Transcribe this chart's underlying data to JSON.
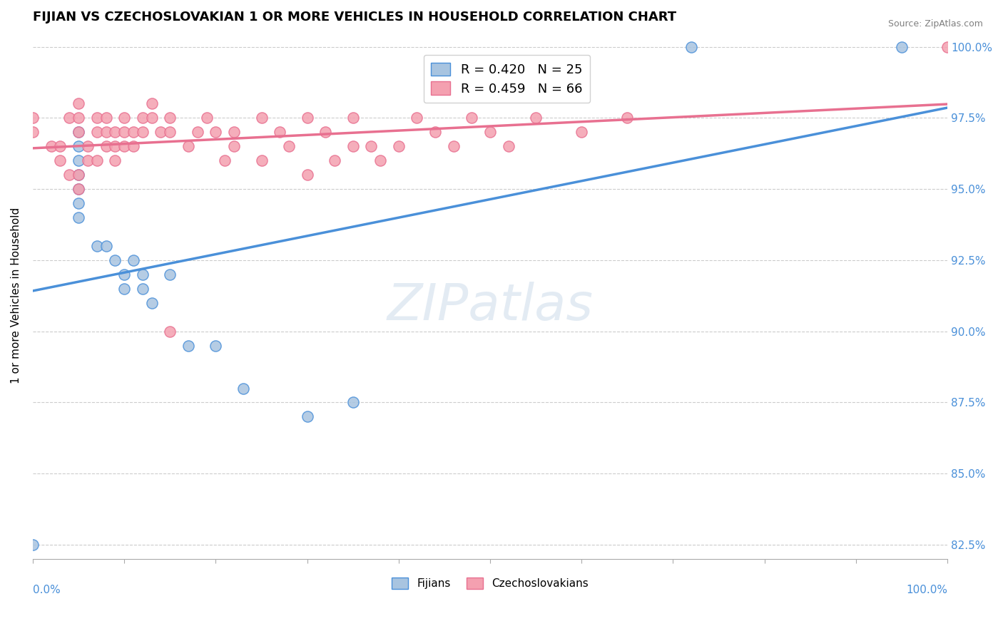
{
  "title": "FIJIAN VS CZECHOSLOVAKIAN 1 OR MORE VEHICLES IN HOUSEHOLD CORRELATION CHART",
  "source_text": "Source: ZipAtlas.com",
  "ylabel": "1 or more Vehicles in Household",
  "ytick_labels": [
    "82.5%",
    "85.0%",
    "87.5%",
    "90.0%",
    "92.5%",
    "95.0%",
    "97.5%",
    "100.0%"
  ],
  "ytick_values": [
    0.825,
    0.85,
    0.875,
    0.9,
    0.925,
    0.95,
    0.975,
    1.0
  ],
  "xrange": [
    0.0,
    1.0
  ],
  "yrange": [
    0.82,
    1.005
  ],
  "fijian_color": "#a8c4e0",
  "czechoslovakian_color": "#f4a0b0",
  "fijian_line_color": "#4a90d9",
  "czechoslovakian_line_color": "#e87090",
  "fijian_R": 0.42,
  "fijian_N": 25,
  "czechoslovakian_R": 0.459,
  "czechoslovakian_N": 66,
  "fijian_scatter": [
    [
      0.0,
      0.825
    ],
    [
      0.05,
      0.97
    ],
    [
      0.05,
      0.965
    ],
    [
      0.05,
      0.96
    ],
    [
      0.05,
      0.955
    ],
    [
      0.05,
      0.95
    ],
    [
      0.05,
      0.945
    ],
    [
      0.05,
      0.94
    ],
    [
      0.07,
      0.93
    ],
    [
      0.08,
      0.93
    ],
    [
      0.09,
      0.925
    ],
    [
      0.1,
      0.92
    ],
    [
      0.1,
      0.915
    ],
    [
      0.11,
      0.925
    ],
    [
      0.12,
      0.92
    ],
    [
      0.12,
      0.915
    ],
    [
      0.13,
      0.91
    ],
    [
      0.15,
      0.92
    ],
    [
      0.17,
      0.895
    ],
    [
      0.2,
      0.895
    ],
    [
      0.23,
      0.88
    ],
    [
      0.3,
      0.87
    ],
    [
      0.35,
      0.875
    ],
    [
      0.72,
      1.0
    ],
    [
      0.95,
      1.0
    ]
  ],
  "czechoslovakian_scatter": [
    [
      0.0,
      0.975
    ],
    [
      0.0,
      0.97
    ],
    [
      0.02,
      0.965
    ],
    [
      0.03,
      0.965
    ],
    [
      0.03,
      0.96
    ],
    [
      0.04,
      0.955
    ],
    [
      0.04,
      0.975
    ],
    [
      0.05,
      0.955
    ],
    [
      0.05,
      0.95
    ],
    [
      0.05,
      0.98
    ],
    [
      0.05,
      0.97
    ],
    [
      0.05,
      0.975
    ],
    [
      0.06,
      0.965
    ],
    [
      0.06,
      0.96
    ],
    [
      0.07,
      0.97
    ],
    [
      0.07,
      0.975
    ],
    [
      0.07,
      0.96
    ],
    [
      0.08,
      0.975
    ],
    [
      0.08,
      0.97
    ],
    [
      0.08,
      0.965
    ],
    [
      0.09,
      0.97
    ],
    [
      0.09,
      0.965
    ],
    [
      0.09,
      0.96
    ],
    [
      0.1,
      0.97
    ],
    [
      0.1,
      0.975
    ],
    [
      0.1,
      0.965
    ],
    [
      0.11,
      0.97
    ],
    [
      0.11,
      0.965
    ],
    [
      0.12,
      0.975
    ],
    [
      0.12,
      0.97
    ],
    [
      0.13,
      0.98
    ],
    [
      0.13,
      0.975
    ],
    [
      0.14,
      0.97
    ],
    [
      0.15,
      0.975
    ],
    [
      0.15,
      0.97
    ],
    [
      0.17,
      0.965
    ],
    [
      0.18,
      0.97
    ],
    [
      0.19,
      0.975
    ],
    [
      0.2,
      0.97
    ],
    [
      0.21,
      0.96
    ],
    [
      0.22,
      0.97
    ],
    [
      0.22,
      0.965
    ],
    [
      0.25,
      0.975
    ],
    [
      0.27,
      0.97
    ],
    [
      0.28,
      0.965
    ],
    [
      0.3,
      0.975
    ],
    [
      0.32,
      0.97
    ],
    [
      0.33,
      0.96
    ],
    [
      0.35,
      0.975
    ],
    [
      0.37,
      0.965
    ],
    [
      0.15,
      0.9
    ],
    [
      0.25,
      0.96
    ],
    [
      0.3,
      0.955
    ],
    [
      0.35,
      0.965
    ],
    [
      0.38,
      0.96
    ],
    [
      0.4,
      0.965
    ],
    [
      0.42,
      0.975
    ],
    [
      0.44,
      0.97
    ],
    [
      0.46,
      0.965
    ],
    [
      0.48,
      0.975
    ],
    [
      0.5,
      0.97
    ],
    [
      0.52,
      0.965
    ],
    [
      0.55,
      0.975
    ],
    [
      0.6,
      0.97
    ],
    [
      0.65,
      0.975
    ],
    [
      1.0,
      1.0
    ]
  ]
}
